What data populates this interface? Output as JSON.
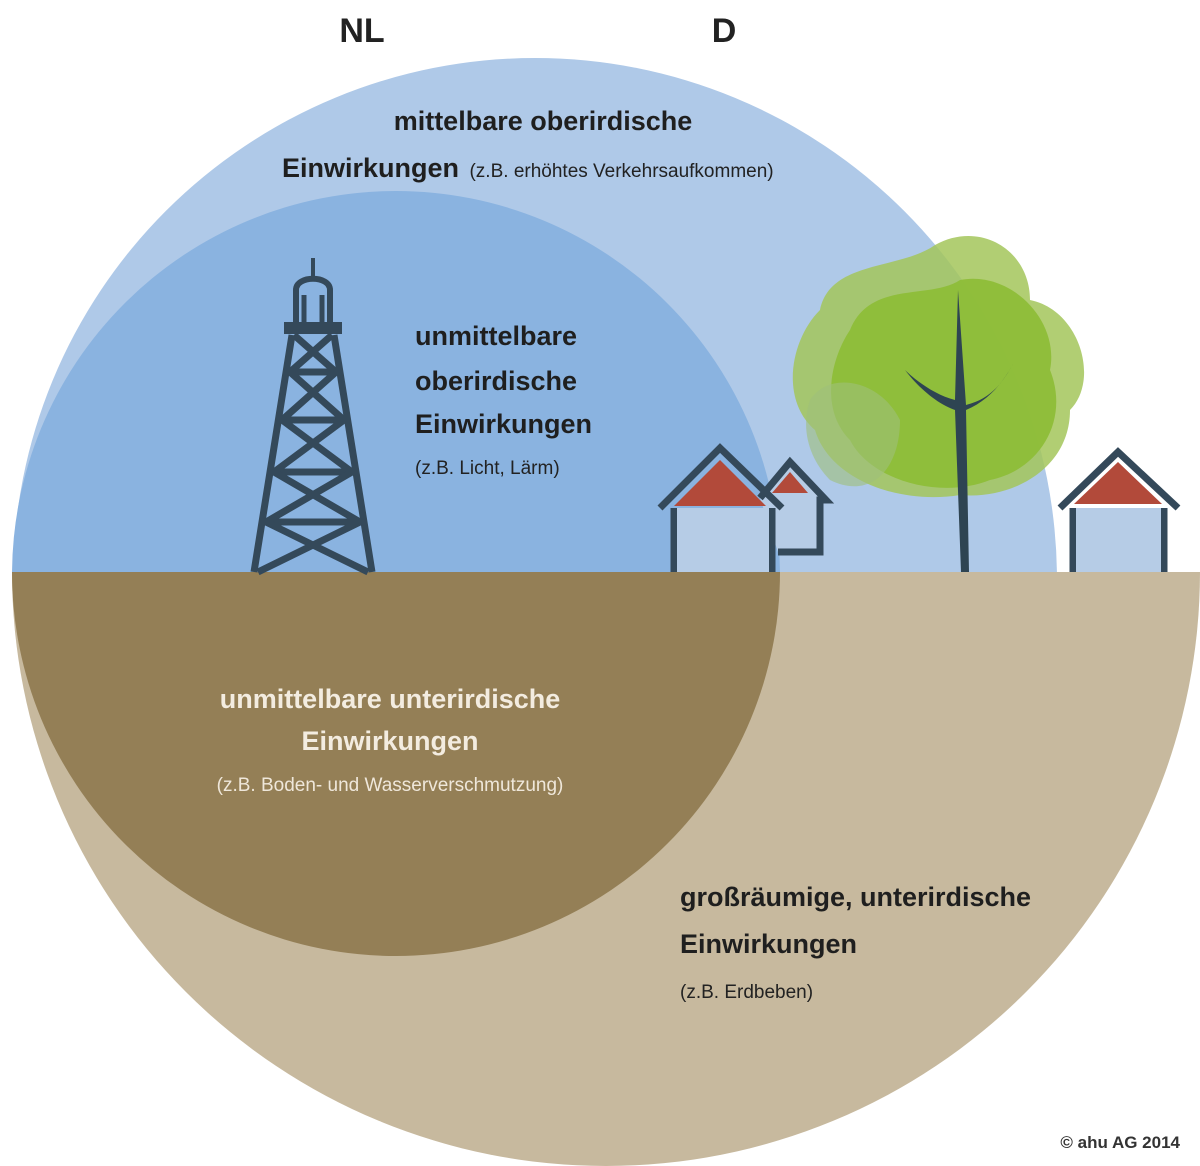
{
  "header": {
    "left": "NL",
    "right": "D"
  },
  "zones": [
    {
      "lines": [
        "mittelbare oberirdische",
        "Einwirkungen"
      ],
      "example": "(z.B. erhöhtes Verkehrsaufkommen)"
    },
    {
      "lines": [
        "unmittelbare",
        "oberirdische",
        "Einwirkungen"
      ],
      "example": "(z.B. Licht, Lärm)"
    },
    {
      "lines": [
        "unmittelbare unterirdische",
        "Einwirkungen"
      ],
      "example": "(z.B. Boden- und Wasserverschmutzung)"
    },
    {
      "lines": [
        "großräumige, unterirdische",
        "Einwirkungen"
      ],
      "example": "(z.B. Erdbeben)"
    }
  ],
  "copyright": "© ahu AG 2014"
}
